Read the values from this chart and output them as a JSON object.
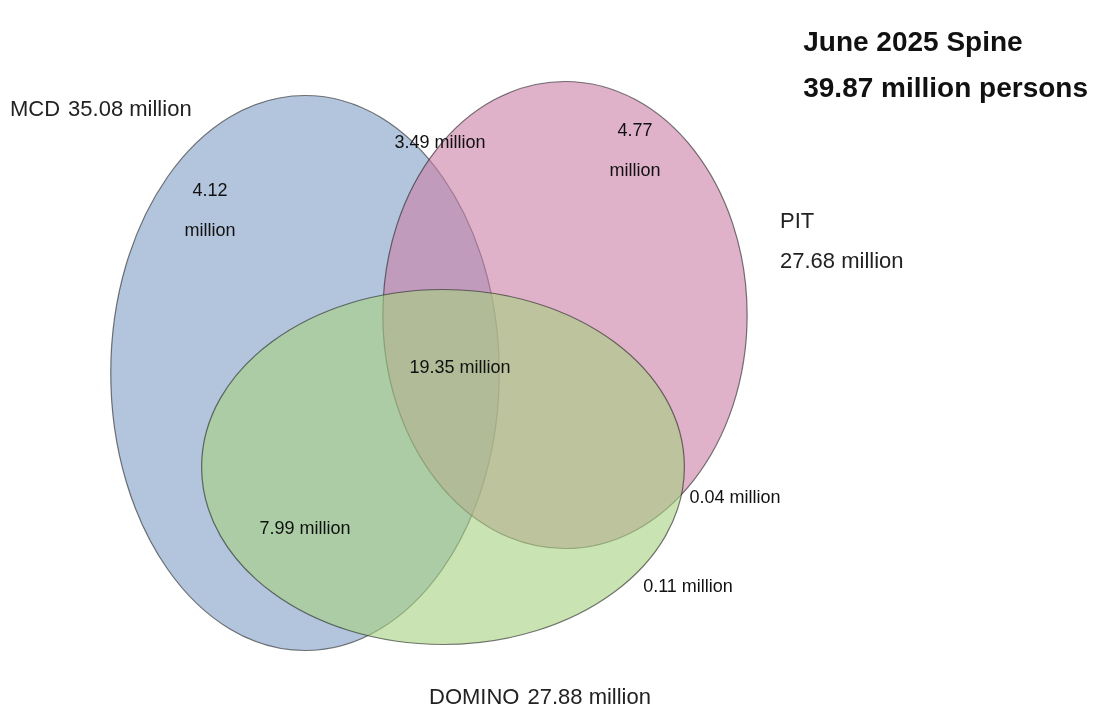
{
  "chart_data": {
    "type": "other",
    "title": "June 2025 Spine",
    "subtitle": "39.87 million persons",
    "categories": [
      "MCD",
      "PIT",
      "DOMINO"
    ],
    "values": [
      35.08,
      27.68,
      27.88
    ],
    "value_labels": [
      "35.08 million",
      "27.68 million",
      "27.88 million"
    ],
    "colors": [
      "#7f9fc4",
      "#c97fa6",
      "#a6d07f"
    ],
    "annotations": [
      "4.12 million",
      "4.77 million",
      "3.49 million",
      "19.35 million",
      "7.99 million",
      "0.04 million",
      "0.11 million"
    ]
  }
}
